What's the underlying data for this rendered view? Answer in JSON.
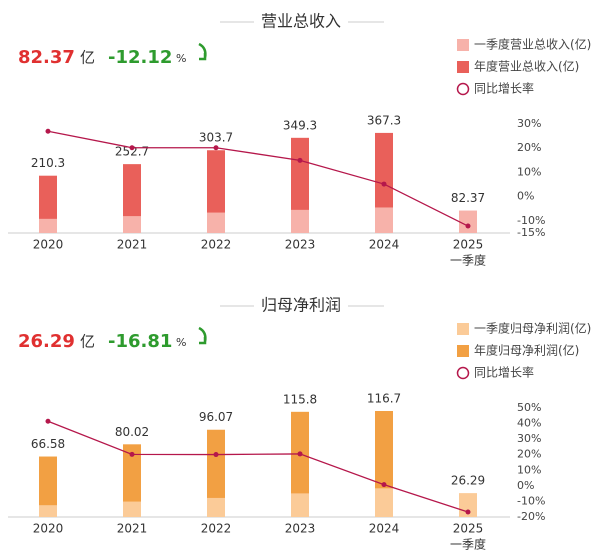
{
  "chart_data": [
    {
      "type": "bar-line",
      "title": "营业总收入",
      "headline_value": 82.37,
      "headline_unit": "亿",
      "headline_change": -12.12,
      "headline_change_unit": "%",
      "categories": [
        "2020",
        "2021",
        "2022",
        "2023",
        "2024",
        "2025"
      ],
      "category_notes": [
        null,
        null,
        null,
        null,
        null,
        "一季度"
      ],
      "series": [
        {
          "name": "一季度营业总收入(亿)",
          "color": "#f7b2aa",
          "values": [
            52,
            62,
            75,
            85,
            93.7,
            82.37
          ]
        },
        {
          "name": "年度营业总收入(亿)",
          "color": "#e9605a",
          "values": [
            210.3,
            252.7,
            303.7,
            349.3,
            367.3,
            null
          ]
        },
        {
          "name": "同比增长率",
          "color": "#b5174b",
          "type": "line",
          "axis": "y2",
          "values": [
            27,
            20.2,
            20.2,
            15.0,
            5.2,
            -12.12
          ]
        }
      ],
      "ylim": [
        0,
        400
      ],
      "y2lim": [
        -15,
        30
      ],
      "y2ticks": [
        {
          "value": 30,
          "label": "30%"
        },
        {
          "value": 20,
          "label": "20%"
        },
        {
          "value": 10,
          "label": "10%"
        },
        {
          "value": 0,
          "label": "0%"
        },
        {
          "value": -10,
          "label": "-10%"
        },
        {
          "value": -15,
          "label": "-15%"
        }
      ]
    },
    {
      "type": "bar-line",
      "title": "归母净利润",
      "headline_value": 26.29,
      "headline_unit": "亿",
      "headline_change": -16.81,
      "headline_change_unit": "%",
      "categories": [
        "2020",
        "2021",
        "2022",
        "2023",
        "2024",
        "2025"
      ],
      "category_notes": [
        null,
        null,
        null,
        null,
        null,
        "一季度"
      ],
      "series": [
        {
          "name": "一季度归母净利润(亿)",
          "color": "#fbcb98",
          "values": [
            13,
            17,
            21,
            26,
            31.6,
            26.29
          ]
        },
        {
          "name": "年度归母净利润(亿)",
          "color": "#f2a043",
          "values": [
            66.58,
            80.02,
            96.07,
            115.8,
            116.7,
            null
          ]
        },
        {
          "name": "同比增长率",
          "color": "#b5174b",
          "type": "line",
          "axis": "y2",
          "values": [
            41.5,
            20.2,
            20.1,
            20.5,
            0.8,
            -16.81
          ]
        }
      ],
      "ylim": [
        0,
        120
      ],
      "y2lim": [
        -20,
        50
      ],
      "y2ticks": [
        {
          "value": 50,
          "label": "50%"
        },
        {
          "value": 40,
          "label": "40%"
        },
        {
          "value": 30,
          "label": "30%"
        },
        {
          "value": 20,
          "label": "20%"
        },
        {
          "value": 10,
          "label": "10%"
        },
        {
          "value": 0,
          "label": "0%"
        },
        {
          "value": -10,
          "label": "-10%"
        },
        {
          "value": -20,
          "label": "-20%"
        }
      ]
    }
  ]
}
